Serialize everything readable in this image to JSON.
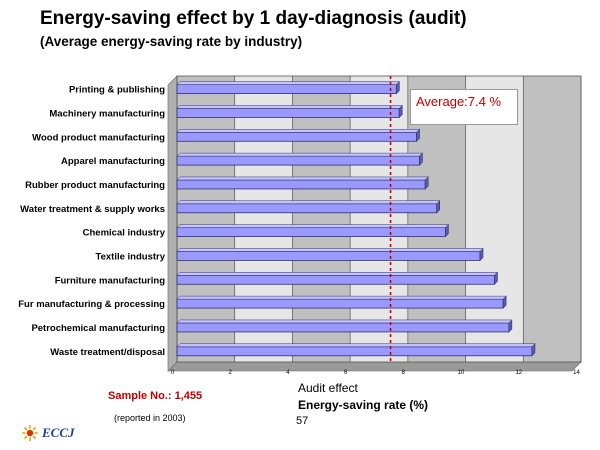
{
  "header": {
    "title": "Energy-saving effect by 1 day-diagnosis (audit)",
    "subtitle": "(Average energy-saving rate by industry)"
  },
  "chart_data": {
    "type": "bar",
    "orientation": "horizontal",
    "categories": [
      "Printing & publishing",
      "Machinery manufacturing",
      "Wood product manufacturing",
      "Apparel manufacturing",
      "Rubber product manufacturing",
      "Water treatment & supply works",
      "Chemical industry",
      "Textile industry",
      "Furniture manufacturing",
      "Fur manufacturing & processing",
      "Petrochemical manufacturing",
      "Waste treatment/disposal"
    ],
    "values": [
      7.6,
      7.7,
      8.3,
      8.4,
      8.6,
      9.0,
      9.3,
      10.5,
      11.0,
      11.3,
      11.5,
      12.3
    ],
    "xlim": [
      0,
      14
    ],
    "xticks": [
      "0",
      "2",
      "4",
      "6",
      "8",
      "10",
      "12",
      "14"
    ],
    "average": 7.4,
    "average_label": "Average:7.4 %",
    "xlabel_line1": "Audit effect",
    "xlabel_line2": "Energy-saving rate (%)",
    "bar_color": "#9999ff",
    "bar_edge_color": "#333366",
    "plot_bg_colors": [
      "#c0c0c0",
      "#e6e6e6"
    ],
    "average_line_color": "#cc0000"
  },
  "footer": {
    "sample": "Sample No.: 1,455",
    "reported": "(reported in 2003)",
    "page_number": "57",
    "logo_text": "ECCJ"
  }
}
